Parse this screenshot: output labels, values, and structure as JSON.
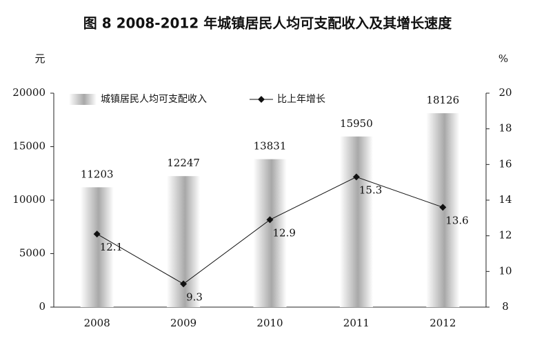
{
  "chart_data": {
    "type": "bar_line",
    "title": "图 8 2008-2012 年城镇居民人均可支配收入及其增长速度",
    "y_label": "元",
    "y2_label": "%",
    "categories": [
      "2008",
      "2009",
      "2010",
      "2011",
      "2012"
    ],
    "series": [
      {
        "name": "城镇居民人均可支配收入",
        "color": "#a8a8a8",
        "type": "bar",
        "values": [
          11203,
          12247,
          13831,
          15950,
          18126
        ]
      },
      {
        "name": "比上年增长",
        "color": "#111111",
        "type": "line",
        "axis": "y2",
        "values": [
          12.1,
          9.3,
          12.9,
          15.3,
          13.6
        ]
      }
    ],
    "ylim": [
      0,
      20000
    ],
    "yticks": [
      0,
      5000,
      10000,
      15000,
      20000
    ],
    "y2lim": [
      8,
      20
    ],
    "y2ticks": [
      8,
      10,
      12,
      14,
      16,
      18,
      20
    ],
    "legend": "top"
  }
}
